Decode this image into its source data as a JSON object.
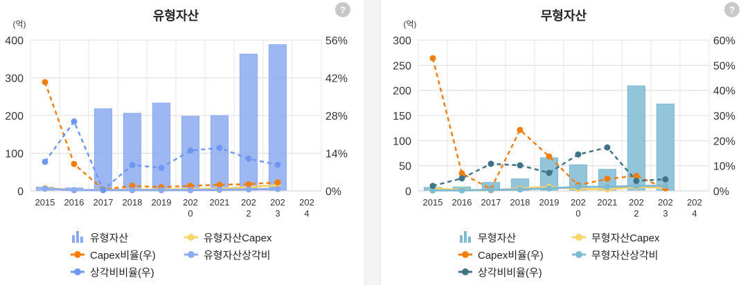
{
  "chart_data": [
    {
      "type": "bar",
      "title": "유형자산",
      "y_unit": "(억)",
      "help_icon": "question-icon",
      "categories": [
        "2015",
        "2016",
        "2017",
        "2018",
        "2019",
        "2020",
        "2021",
        "2022",
        "2023",
        "2024"
      ],
      "category_lines": [
        [
          "2015"
        ],
        [
          "2016"
        ],
        [
          "2017"
        ],
        [
          "2018"
        ],
        [
          "2019"
        ],
        [
          "202",
          "0"
        ],
        [
          "2021"
        ],
        [
          "202",
          "2"
        ],
        [
          "202",
          "3"
        ],
        [
          "202",
          "4"
        ]
      ],
      "ylim": [
        0,
        400
      ],
      "yticks": [
        0,
        100,
        200,
        300,
        400
      ],
      "ylim_right": [
        0,
        56
      ],
      "yticks_right": [
        0,
        14,
        28,
        42,
        56
      ],
      "right_tick_labels": [
        "0%",
        "14%",
        "28%",
        "42%",
        "56%"
      ],
      "grid": true,
      "bars": {
        "name": "유형자산",
        "color": "#8caaf0",
        "values": [
          10,
          8,
          218,
          206,
          233,
          198,
          200,
          363,
          388,
          null
        ]
      },
      "series": [
        {
          "name": "유형자산Capex",
          "axis": "left",
          "color": "#f9d36b",
          "dashed": false,
          "values": [
            8,
            2,
            3,
            4,
            4,
            5,
            6,
            10,
            15,
            null
          ]
        },
        {
          "name": "Capex비율(우)",
          "axis": "right",
          "color": "#f07f0e",
          "dashed": true,
          "values": [
            40.4,
            10.0,
            0.5,
            1.9,
            1.4,
            1.9,
            2.3,
            2.5,
            3.2,
            null
          ]
        },
        {
          "name": "유형자산상각비",
          "axis": "left",
          "color": "#8caaf0",
          "dashed": false,
          "values": [
            6,
            2,
            2,
            2,
            2,
            2,
            3,
            4,
            5,
            null
          ]
        },
        {
          "name": "상각비비율(우)",
          "axis": "right",
          "color": "#6f97f0",
          "dashed": true,
          "values": [
            10.8,
            25.8,
            0.4,
            9.6,
            8.6,
            15.0,
            16.0,
            12.0,
            9.7,
            null
          ]
        }
      ],
      "legend": {
        "placement": "bottom",
        "items": [
          {
            "label": "유형자산",
            "kind": "bar",
            "color": "#8caaf0"
          },
          {
            "label": "유형자산Capex",
            "kind": "line",
            "color": "#f9d36b"
          },
          {
            "label": "Capex비율(우)",
            "kind": "line",
            "color": "#f07f0e"
          },
          {
            "label": "유형자산상각비",
            "kind": "line",
            "color": "#8caaf0"
          },
          {
            "label": "상각비비율(우)",
            "kind": "line",
            "color": "#6f97f0"
          }
        ]
      }
    },
    {
      "type": "bar",
      "title": "무형자산",
      "y_unit": "(억)",
      "help_icon": "question-icon",
      "categories": [
        "2015",
        "2016",
        "2017",
        "2018",
        "2019",
        "2020",
        "2021",
        "2022",
        "2023",
        "2024"
      ],
      "category_lines": [
        [
          "2015"
        ],
        [
          "2016"
        ],
        [
          "2017"
        ],
        [
          "2018"
        ],
        [
          "2019"
        ],
        [
          "202",
          "0"
        ],
        [
          "2021"
        ],
        [
          "202",
          "2"
        ],
        [
          "202",
          "3"
        ],
        [
          "202",
          "4"
        ]
      ],
      "ylim": [
        0,
        300
      ],
      "yticks": [
        0,
        50,
        100,
        150,
        200,
        250,
        300
      ],
      "ylim_right": [
        0,
        60
      ],
      "yticks_right": [
        0,
        10,
        20,
        30,
        40,
        50,
        60
      ],
      "right_tick_labels": [
        "0%",
        "10%",
        "20%",
        "30%",
        "40%",
        "50%",
        "60%"
      ],
      "grid": true,
      "bars": {
        "name": "무형자산",
        "color": "#7fbad3",
        "values": [
          7,
          8,
          17,
          24,
          66,
          52,
          43,
          209,
          173,
          null
        ]
      },
      "series": [
        {
          "name": "무형자산Capex",
          "axis": "left",
          "color": "#f9d36b",
          "dashed": false,
          "values": [
            5,
            2,
            1,
            5,
            8,
            4,
            3,
            8,
            6,
            null
          ]
        },
        {
          "name": "Capex비율(우)",
          "axis": "right",
          "color": "#f07f0e",
          "dashed": true,
          "values": [
            52.8,
            7.0,
            0.7,
            24.3,
            13.7,
            2.3,
            4.8,
            6.0,
            1.0,
            null
          ]
        },
        {
          "name": "무형자산상각비",
          "axis": "left",
          "color": "#7fbad3",
          "dashed": false,
          "values": [
            1,
            1,
            2,
            3,
            5,
            8,
            8,
            10,
            10,
            null
          ]
        },
        {
          "name": "상각비비율(우)",
          "axis": "right",
          "color": "#3f7487",
          "dashed": true,
          "values": [
            2.0,
            5.0,
            10.8,
            10.2,
            7.2,
            14.5,
            17.3,
            4.0,
            4.6,
            null
          ]
        }
      ],
      "legend": {
        "placement": "bottom",
        "items": [
          {
            "label": "무형자산",
            "kind": "bar",
            "color": "#7fbad3"
          },
          {
            "label": "무형자산Capex",
            "kind": "line",
            "color": "#f9d36b"
          },
          {
            "label": "Capex비율(우)",
            "kind": "line",
            "color": "#f07f0e"
          },
          {
            "label": "무형자산상각비",
            "kind": "line",
            "color": "#7fbad3"
          },
          {
            "label": "상각비비율(우)",
            "kind": "line",
            "color": "#3f7487"
          }
        ]
      }
    }
  ]
}
